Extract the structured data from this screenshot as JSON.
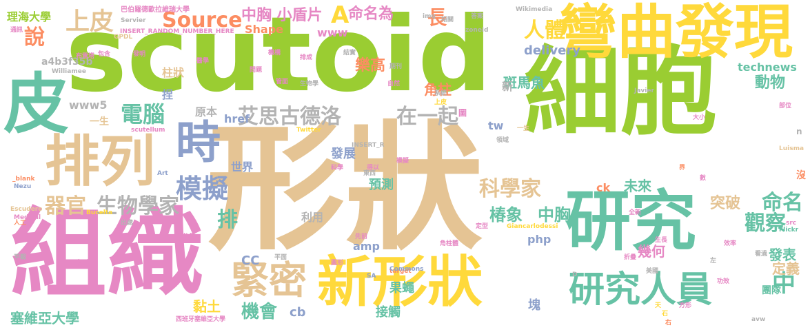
{
  "palette": {
    "green": "#9ACD32",
    "pink": "#E688C4",
    "teal": "#66C2A5",
    "yellow": "#FFD93B",
    "tan": "#E5C494",
    "orange": "#FC8D62",
    "blue": "#8DA0CB",
    "gray": "#B3B3B3"
  },
  "words": [
    "scutoid",
    "形狀",
    "細胞",
    "組織",
    "研究",
    "新形狀",
    "彎曲發現",
    "皮",
    "排列",
    "研究人員",
    "時",
    "緊密",
    "艾思古德洛",
    "在一起",
    "Source",
    "上皮",
    "電腦",
    "模擬",
    "器官",
    "生物學家",
    "說",
    "人體",
    "科學家",
    "觀察",
    "椿象",
    "中胸",
    "機會",
    "塞維亞大學",
    "中",
    "排",
    "命名",
    "突破",
    "動物",
    "未來",
    "發表",
    "定義",
    "幾何",
    "樂高",
    "角柱",
    "斑馬魚",
    "delivery",
    "technews",
    "www5",
    "原本",
    "一生",
    "href",
    "世界",
    "發展",
    "預測",
    "果蠅",
    "接觸",
    "amp",
    "php",
    "ck",
    "黏土",
    "CC",
    "cb",
    "理海大學",
    "Shape",
    "www",
    "中胸 小盾片",
    "A",
    "命名為",
    "長",
    "a4b3f35b",
    "柱狀",
    "捏",
    "tw",
    "塊",
    "團隊",
    "利用",
    "新",
    "沒",
    "n",
    "巴伯羅德歐拉維瑞大學",
    "Wikimedia",
    "Servier",
    "INSERT_RANDOM_NUMBER_HERE",
    "GPDL",
    "img",
    "zoneid",
    "Williamee",
    "Twitter",
    "INSERT_R",
    "Escudero",
    "Medical",
    "Bucelta",
    "Giancarlodessi",
    "target",
    "Commons",
    "SA",
    "Luisma",
    "Flickr",
    "scutellum",
    "Javier",
    "Nezu",
    "_blank",
    "Art",
    "src",
    "avw",
    "D",
    "效率",
    "左",
    "功效",
    "右",
    "石",
    "天",
    "方形",
    "圖",
    "上皮",
    "相關",
    "答案",
    "西班牙塞維亞大學",
    "人工",
    "通訊",
    "布雷塔",
    "平截",
    "寫到",
    "發揮",
    "永存",
    "出處",
    "他們",
    "先前",
    "角柱體",
    "定型",
    "生長",
    "看過",
    "美國",
    "界",
    "數",
    "部位",
    "大小",
    "一生",
    "領域",
    "東西",
    "科學",
    "得以",
    "模擬",
    "結實",
    "期刊",
    "系統",
    "生物學",
    "自然",
    "排成",
    "機構",
    "包含",
    "發明",
    "問題",
    "醫學",
    "全新",
    "折疊",
    "圓形",
    "管面",
    "平面"
  ]
}
